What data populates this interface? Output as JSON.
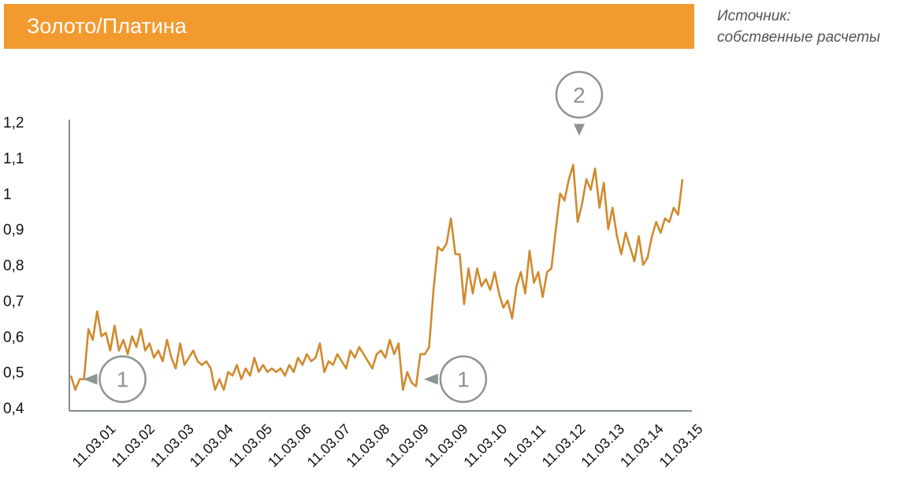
{
  "header": {
    "title": "Золото/Платина",
    "source_line1": "Источник:",
    "source_line2": "собственные расчеты"
  },
  "colors": {
    "header_bg": "#F39A2E",
    "line": "#D08A2E",
    "axis": "#7F8C8D",
    "marker": "#8C9496"
  },
  "chart_data": {
    "type": "line",
    "title": "Золото/Платина",
    "xlabel": "",
    "ylabel": "",
    "ylim": [
      0.4,
      1.2
    ],
    "yticks": [
      "0,4",
      "0,5",
      "0,6",
      "0,7",
      "0,8",
      "0,9",
      "1",
      "1,1",
      "1,2"
    ],
    "xticks": [
      "11.03.01",
      "11.03.02",
      "11.03.03",
      "11.03.04",
      "11.03.05",
      "11.03.06",
      "11.03.07",
      "11.03.08",
      "11.03.09",
      "11.03.09",
      "11.03.10",
      "11.03.11",
      "11.03.12",
      "11.03.13",
      "11.03.14",
      "11.03.15"
    ],
    "grid": false,
    "legend": "none",
    "series": [
      {
        "values": [
          0.49,
          0.45,
          0.48,
          0.48,
          0.62,
          0.59,
          0.67,
          0.6,
          0.61,
          0.56,
          0.63,
          0.56,
          0.59,
          0.55,
          0.6,
          0.57,
          0.62,
          0.56,
          0.58,
          0.54,
          0.56,
          0.53,
          0.59,
          0.54,
          0.51,
          0.58,
          0.52,
          0.54,
          0.56,
          0.53,
          0.52,
          0.53,
          0.51,
          0.45,
          0.48,
          0.45,
          0.5,
          0.49,
          0.52,
          0.48,
          0.51,
          0.49,
          0.54,
          0.5,
          0.52,
          0.5,
          0.51,
          0.5,
          0.51,
          0.49,
          0.52,
          0.5,
          0.54,
          0.52,
          0.55,
          0.53,
          0.54,
          0.58,
          0.5,
          0.53,
          0.52,
          0.55,
          0.53,
          0.51,
          0.56,
          0.54,
          0.57,
          0.55,
          0.53,
          0.51,
          0.55,
          0.56,
          0.54,
          0.59,
          0.55,
          0.58,
          0.45,
          0.5,
          0.47,
          0.46,
          0.55,
          0.55,
          0.57,
          0.73,
          0.85,
          0.84,
          0.86,
          0.93,
          0.83,
          0.83,
          0.69,
          0.79,
          0.72,
          0.79,
          0.74,
          0.76,
          0.73,
          0.78,
          0.72,
          0.68,
          0.7,
          0.65,
          0.74,
          0.78,
          0.72,
          0.84,
          0.75,
          0.78,
          0.71,
          0.78,
          0.79,
          0.9,
          1.0,
          0.98,
          1.04,
          1.08,
          0.92,
          0.97,
          1.04,
          1.01,
          1.07,
          0.96,
          1.03,
          0.9,
          0.96,
          0.88,
          0.83,
          0.89,
          0.85,
          0.81,
          0.88,
          0.8,
          0.82,
          0.88,
          0.92,
          0.89,
          0.93,
          0.92,
          0.96,
          0.94,
          1.04
        ]
      }
    ],
    "annotations": [
      {
        "label": "1",
        "at_value": 0.48,
        "at_index": 1,
        "pointer": "left"
      },
      {
        "label": "1",
        "at_value": 0.48,
        "at_index": 79,
        "pointer": "left"
      },
      {
        "label": "2",
        "at_value": 1.1,
        "at_index": 116,
        "pointer": "down"
      }
    ]
  }
}
